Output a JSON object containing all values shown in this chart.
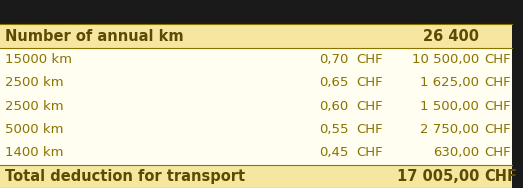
{
  "header_bg": "#F5E6A0",
  "body_bg": "#FFFEF0",
  "footer_bg": "#F5E6A0",
  "top_bar_bg": "#1a1a1a",
  "header_row": [
    "Number of annual km",
    "",
    "",
    "26 400",
    ""
  ],
  "data_rows": [
    [
      "15000 km",
      "0,70",
      "CHF",
      "10 500,00",
      "CHF"
    ],
    [
      "2500 km",
      "0,65",
      "CHF",
      "1 625,00",
      "CHF"
    ],
    [
      "2500 km",
      "0,60",
      "CHF",
      "1 500,00",
      "CHF"
    ],
    [
      "5000 km",
      "0,55",
      "CHF",
      "2 750,00",
      "CHF"
    ],
    [
      "1400 km",
      "0,45",
      "CHF",
      "630,00",
      "CHF"
    ]
  ],
  "footer_row": [
    "Total deduction for transport",
    "",
    "",
    "17 005,00",
    "CHF"
  ],
  "text_color": "#8B7300",
  "bold_color": "#5C4A00",
  "font_size": 9.5,
  "header_font_size": 10.5,
  "top_bar_height": 0.13
}
